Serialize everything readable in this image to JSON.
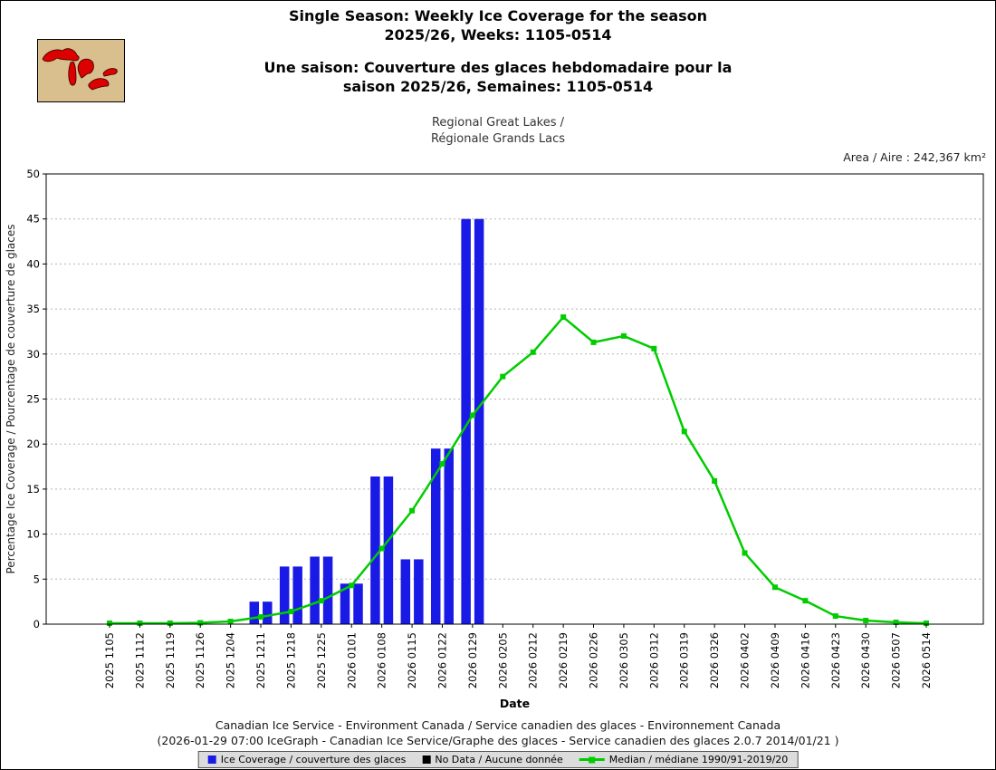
{
  "header": {
    "title_en": "Single Season: Weekly Ice Coverage for the season\n2025/26, Weeks: 1105-0514",
    "title_fr": "Une saison: Couverture des glaces hebdomadaire pour la\nsaison 2025/26, Semaines: 1105-0514",
    "region": "Regional Great Lakes /\nRégionale Grands Lacs",
    "area_label": "Area / Aire : 242,367 km²"
  },
  "footer": {
    "line1": "Canadian Ice Service - Environment Canada / Service canadien des glaces - Environnement Canada",
    "line2": "(2026-01-29 07:00 IceGraph - Canadian Ice Service/Graphe des glaces - Service canadien des glaces 2.0.7 2014/01/21 )"
  },
  "legend": {
    "ice_coverage": "Ice Coverage / couverture des glaces",
    "no_data": "No Data / Aucune donnée",
    "median": "Median / médiane 1990/91-2019/20",
    "colors": {
      "ice": "#1a1ae6",
      "no_data": "#000000",
      "median": "#00cc00"
    }
  },
  "chart_data": {
    "type": "bar",
    "title": "Single Season: Weekly Ice Coverage for the season 2025/26, Weeks: 1105-0514",
    "xlabel": "Date",
    "ylabel": "Percentage Ice Coverage / Pourcentage de couverture de glaces",
    "ylim": [
      0,
      50
    ],
    "ytick_step": 5,
    "grid": "horizontal-dashed",
    "legend_position": "bottom",
    "categories": [
      "2025 1105",
      "2025 1112",
      "2025 1119",
      "2025 1126",
      "2025 1204",
      "2025 1211",
      "2025 1218",
      "2025 1225",
      "2026 0101",
      "2026 0108",
      "2026 0115",
      "2026 0122",
      "2026 0129",
      "2026 0205",
      "2026 0212",
      "2026 0219",
      "2026 0226",
      "2026 0305",
      "2026 0312",
      "2026 0319",
      "2026 0326",
      "2026 0402",
      "2026 0409",
      "2026 0416",
      "2026 0423",
      "2026 0430",
      "2026 0507",
      "2026 0514"
    ],
    "series": [
      {
        "name": "Ice Coverage / couverture des glaces",
        "type": "bar",
        "color": "#1a1ae6",
        "values": [
          0,
          0,
          0,
          0,
          0,
          2.5,
          6.4,
          7.5,
          4.5,
          16.4,
          7.2,
          19.5,
          45.0,
          null,
          null,
          null,
          null,
          null,
          null,
          null,
          null,
          null,
          null,
          null,
          null,
          null,
          null,
          null
        ]
      },
      {
        "name": "Median / médiane 1990/91-2019/20",
        "type": "line",
        "color": "#00cc00",
        "values": [
          0.1,
          0.1,
          0.1,
          0.15,
          0.3,
          0.8,
          1.4,
          2.6,
          4.3,
          8.4,
          12.6,
          17.8,
          23.2,
          27.5,
          30.2,
          34.1,
          31.3,
          32.0,
          30.6,
          21.4,
          15.9,
          7.9,
          4.1,
          2.6,
          0.9,
          0.4,
          0.2,
          0.1
        ]
      }
    ]
  }
}
